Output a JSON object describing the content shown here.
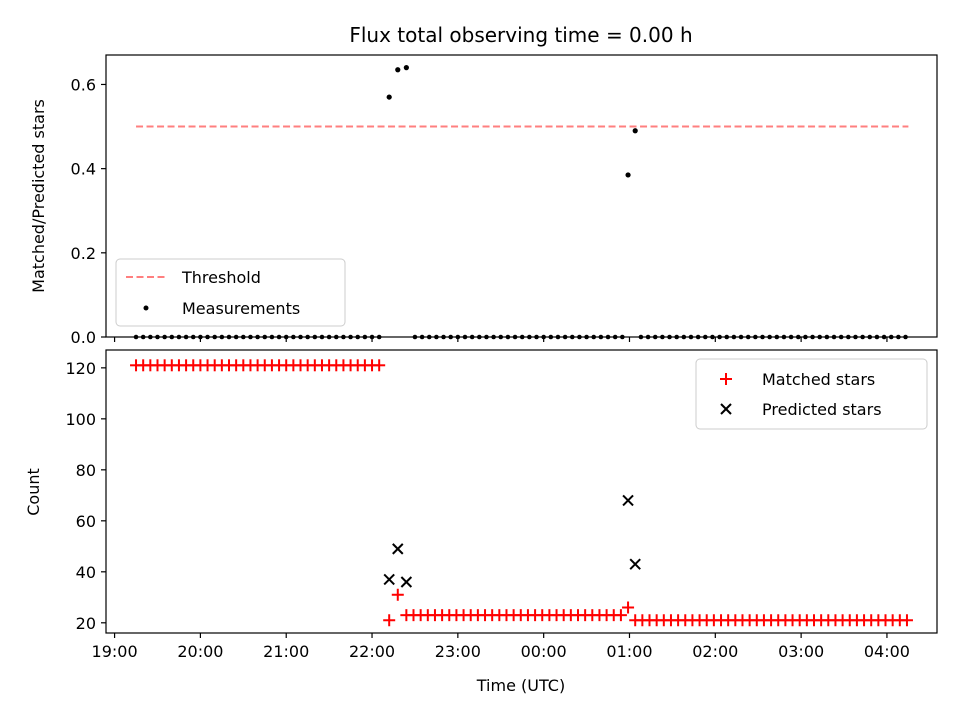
{
  "figure": {
    "title": "Flux total observing time = 0.00 h"
  },
  "chart_data": [
    {
      "type": "scatter",
      "title": "Flux total observing time = 0.00 h",
      "xlabel": "",
      "ylabel": "Matched/Predicted stars",
      "xlim": [
        "18:54",
        "04:35"
      ],
      "ylim": [
        0,
        0.67
      ],
      "yticks": [
        0.0,
        0.2,
        0.4,
        0.6
      ],
      "grid": false,
      "legend": "lower-left",
      "threshold": {
        "name": "Threshold",
        "value": 0.5,
        "x_range": [
          "19:15",
          "04:15"
        ],
        "color": "#ff7f7f",
        "style": "dashed"
      },
      "series": [
        {
          "name": "Measurements",
          "marker": "dot",
          "color": "#000000",
          "points": [
            {
              "x": "22:12",
              "y": 0.57
            },
            {
              "x": "22:18",
              "y": 0.635
            },
            {
              "x": "22:24",
              "y": 0.64
            },
            {
              "x": "00:59",
              "y": 0.385
            },
            {
              "x": "01:04",
              "y": 0.49
            }
          ],
          "zero_runs": [
            {
              "start": "19:15",
              "end": "22:08",
              "step_minutes": 5
            },
            {
              "start": "22:30",
              "end": "00:55",
              "step_minutes": 5
            },
            {
              "start": "01:08",
              "end": "04:15",
              "step_minutes": 5
            }
          ]
        }
      ]
    },
    {
      "type": "scatter",
      "title": "",
      "xlabel": "Time (UTC)",
      "ylabel": "Count",
      "xlim": [
        "18:54",
        "04:35"
      ],
      "ylim": [
        16,
        127
      ],
      "yticks": [
        20,
        40,
        60,
        80,
        100,
        120
      ],
      "xticks": [
        "19:00",
        "20:00",
        "21:00",
        "22:00",
        "23:00",
        "00:00",
        "01:00",
        "02:00",
        "03:00",
        "04:00"
      ],
      "grid": false,
      "legend": "upper-right",
      "series": [
        {
          "name": "Matched stars",
          "marker": "plus",
          "color": "#ff0000",
          "points": [
            {
              "x": "22:12",
              "y": 21
            },
            {
              "x": "22:18",
              "y": 31
            },
            {
              "x": "00:59",
              "y": 26
            }
          ],
          "runs": [
            {
              "start": "19:15",
              "end": "22:08",
              "step_minutes": 5,
              "y": 121
            },
            {
              "start": "22:24",
              "end": "00:55",
              "step_minutes": 5,
              "y": 23
            },
            {
              "start": "01:04",
              "end": "04:15",
              "step_minutes": 5,
              "y": 21
            }
          ]
        },
        {
          "name": "Predicted stars",
          "marker": "x",
          "color": "#000000",
          "points": [
            {
              "x": "22:12",
              "y": 37
            },
            {
              "x": "22:18",
              "y": 49
            },
            {
              "x": "22:24",
              "y": 36
            },
            {
              "x": "00:59",
              "y": 68
            },
            {
              "x": "01:04",
              "y": 43
            }
          ]
        }
      ]
    }
  ]
}
